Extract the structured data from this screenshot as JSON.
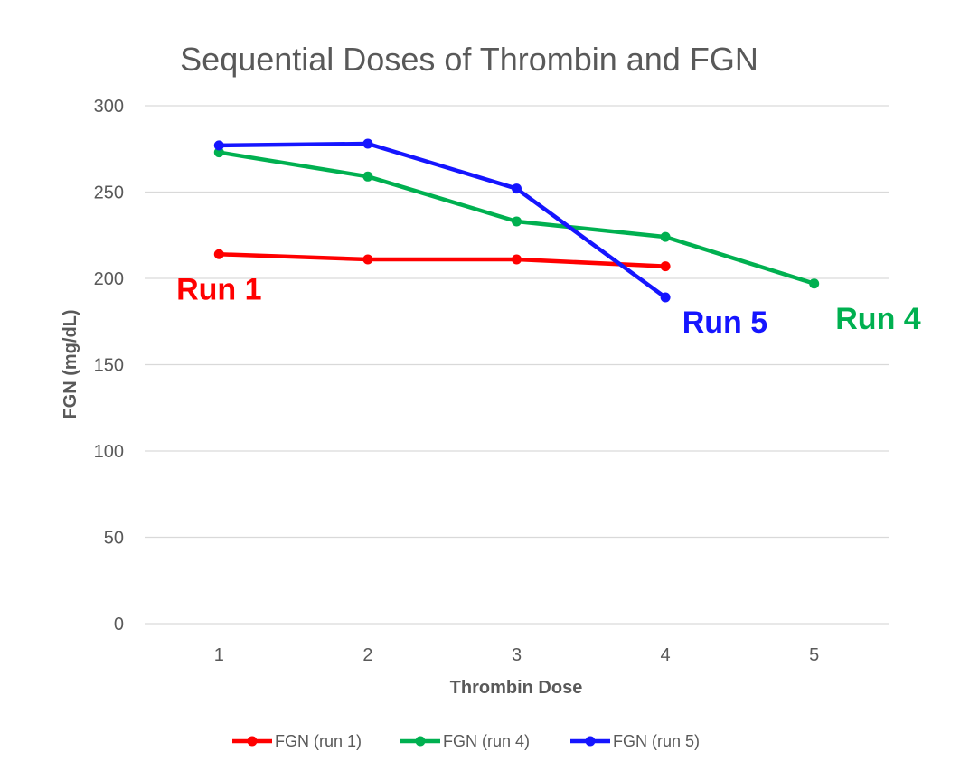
{
  "chart_data": {
    "type": "line",
    "title": "Sequential Doses of Thrombin and FGN",
    "xlabel": "Thrombin Dose",
    "ylabel": "FGN (mg/dL)",
    "categories": [
      "1",
      "2",
      "3",
      "4",
      "5"
    ],
    "ylim": [
      0,
      300
    ],
    "yticks": [
      0,
      50,
      100,
      150,
      200,
      250,
      300
    ],
    "grid": true,
    "legend_position": "bottom",
    "series": [
      {
        "name": "FGN (run 1)",
        "color": "#ff0000",
        "values": [
          214,
          211,
          211,
          207,
          null
        ]
      },
      {
        "name": "FGN (run 4)",
        "color": "#00b050",
        "values": [
          273,
          259,
          233,
          224,
          197
        ]
      },
      {
        "name": "FGN (run 5)",
        "color": "#1515ff",
        "values": [
          277,
          278,
          252,
          189,
          null
        ]
      }
    ],
    "annotations": [
      {
        "text": "Run 1",
        "color": "#ff0000",
        "x": 1,
        "y": 194
      },
      {
        "text": "Run 5",
        "color": "#1515ff",
        "x": 4.4,
        "y": 175
      },
      {
        "text": "Run 4",
        "color": "#00b050",
        "x": 5.43,
        "y": 177
      }
    ]
  }
}
